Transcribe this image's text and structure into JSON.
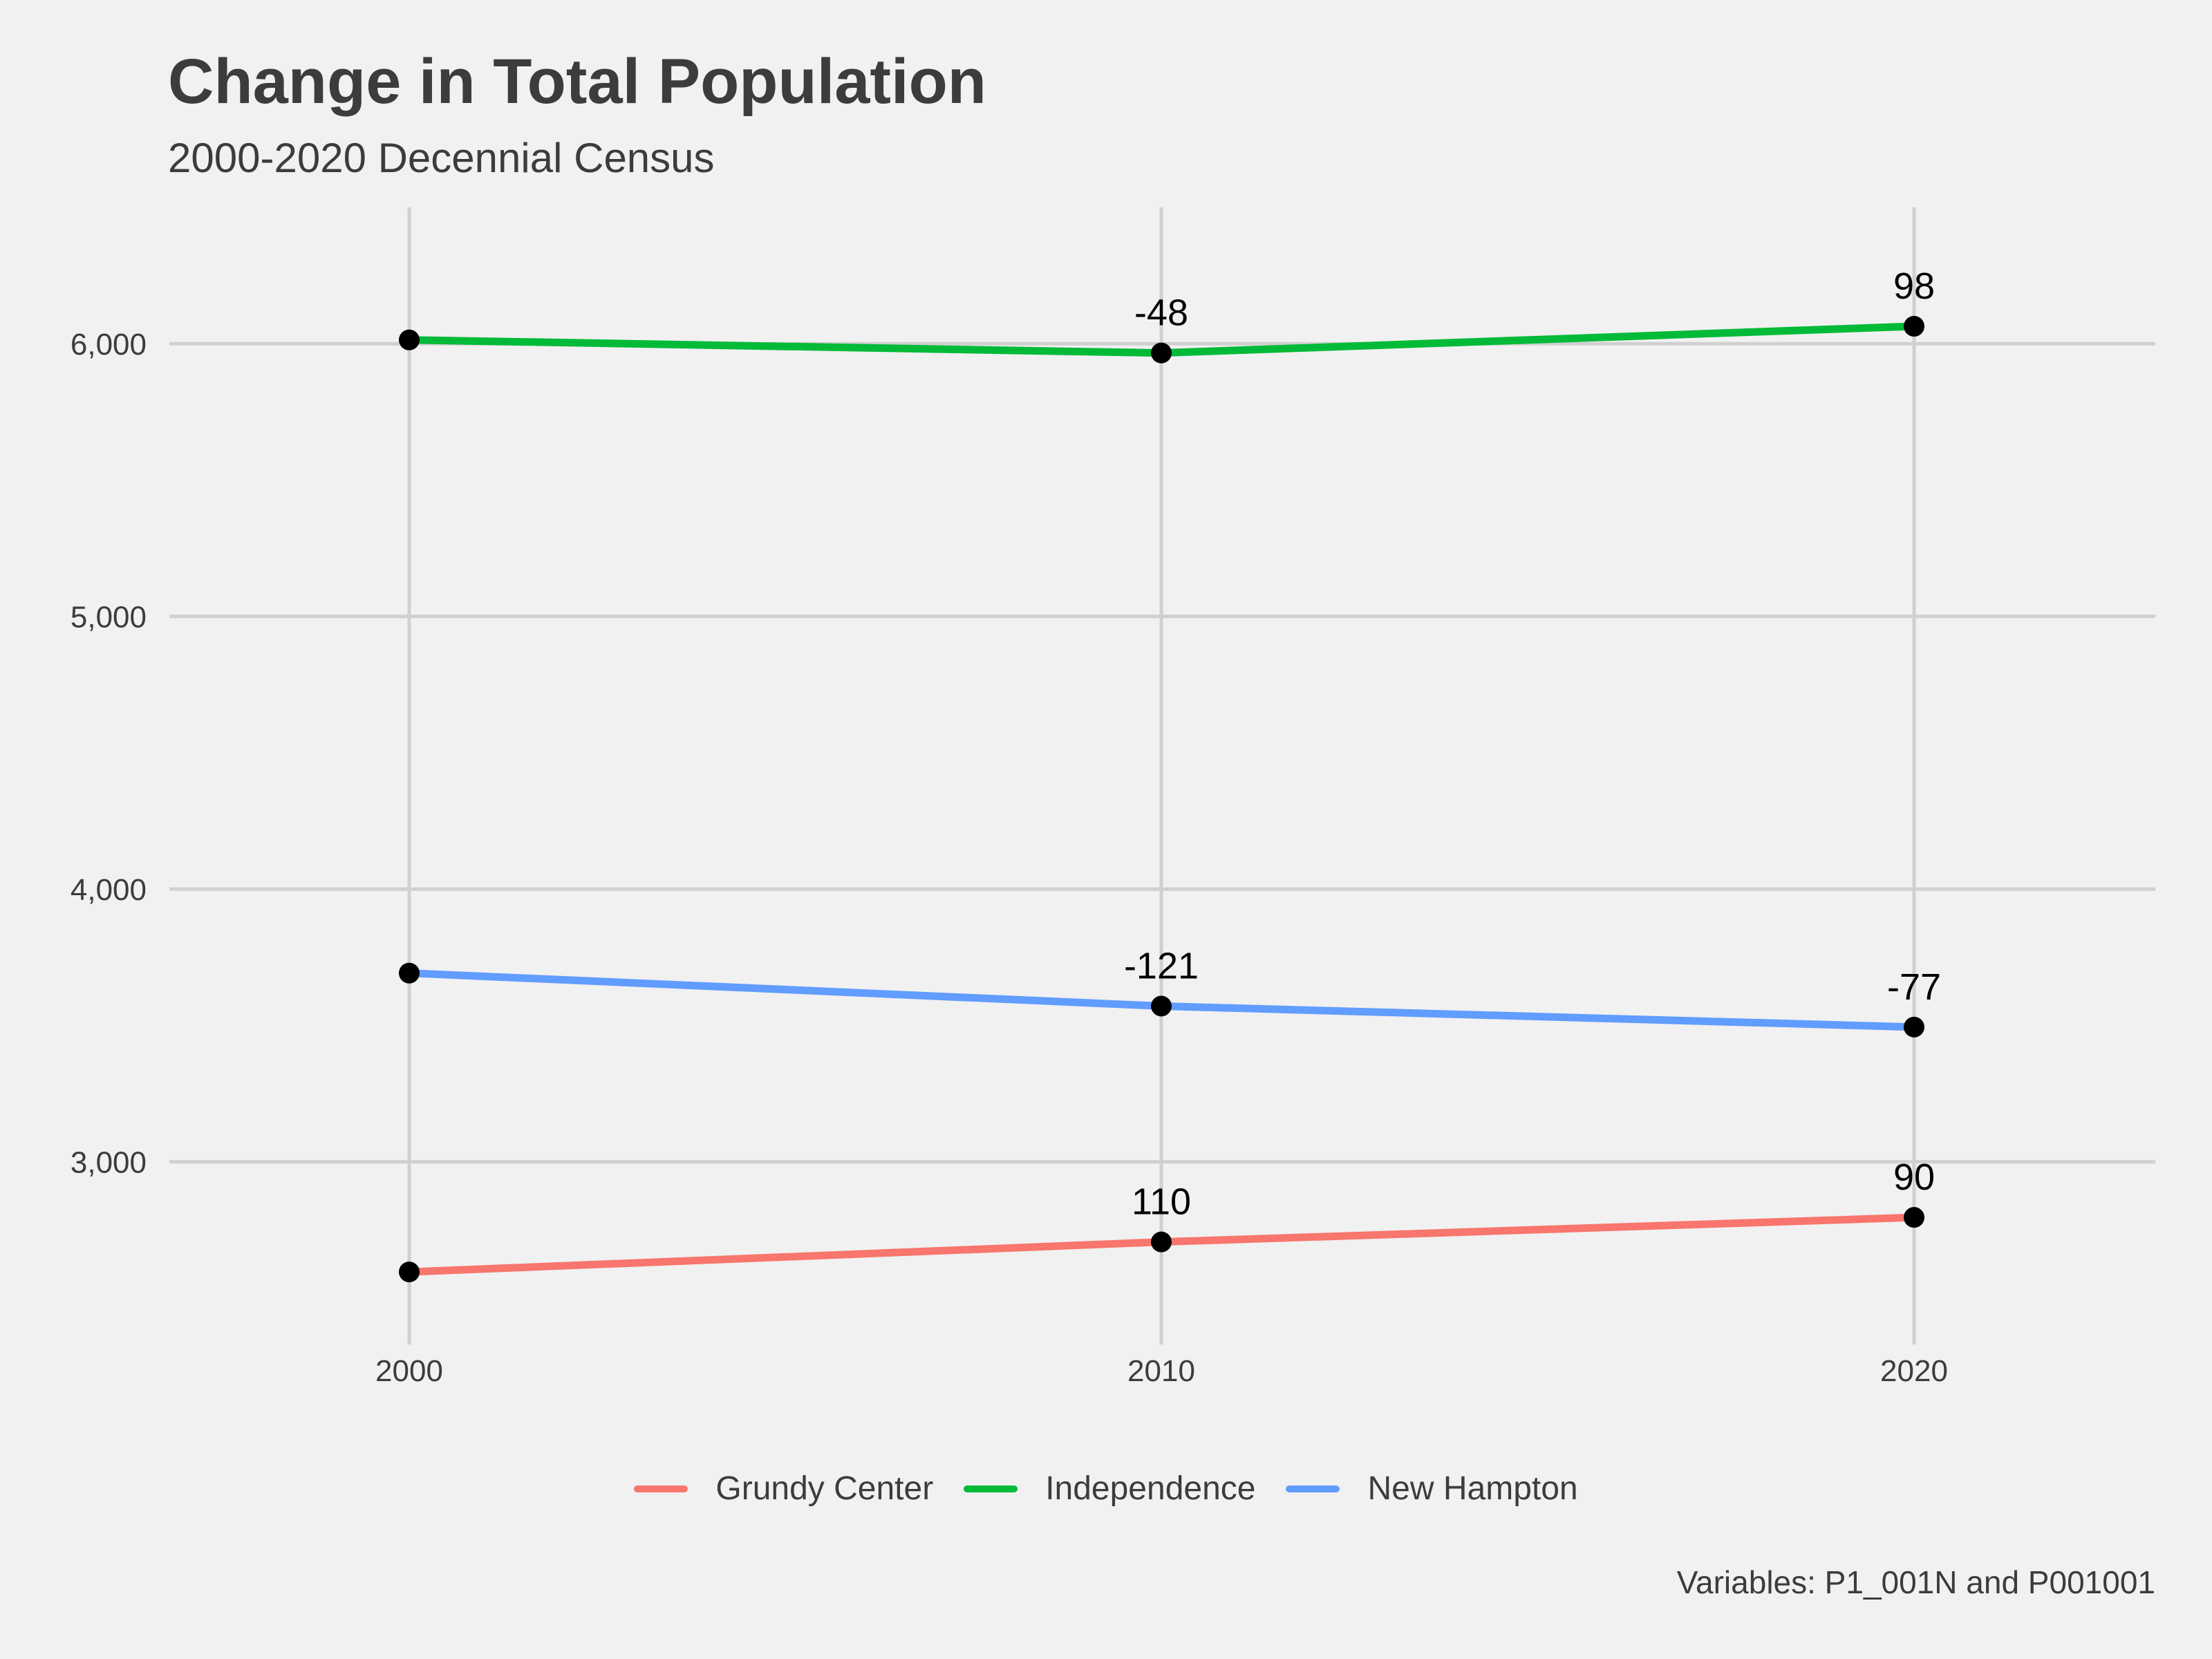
{
  "chart_data": {
    "type": "line",
    "title": "Change in Total Population",
    "subtitle": "2000-2020 Decennial Census",
    "caption": "Variables: P1_001N and P001001",
    "x": [
      2000,
      2010,
      2020
    ],
    "x_tick_labels": [
      "2000",
      "2010",
      "2020"
    ],
    "y_ticks": [
      3000,
      4000,
      5000,
      6000
    ],
    "y_tick_labels": [
      "3,000",
      "4,000",
      "5,000",
      "6,000"
    ],
    "ylim": [
      2330,
      6500
    ],
    "xlabel": "",
    "ylabel": "",
    "grid": true,
    "legend_position": "bottom",
    "series": [
      {
        "name": "Grundy Center",
        "color": "#f8766d",
        "values": [
          2596,
          2706,
          2796
        ],
        "labels": [
          "",
          "110",
          "90"
        ]
      },
      {
        "name": "Independence",
        "color": "#00ba38",
        "values": [
          6014,
          5966,
          6064
        ],
        "labels": [
          "",
          "-48",
          "98"
        ]
      },
      {
        "name": "New Hampton",
        "color": "#619cff",
        "values": [
          3692,
          3571,
          3494
        ],
        "labels": [
          "",
          "-121",
          "-77"
        ]
      }
    ]
  }
}
